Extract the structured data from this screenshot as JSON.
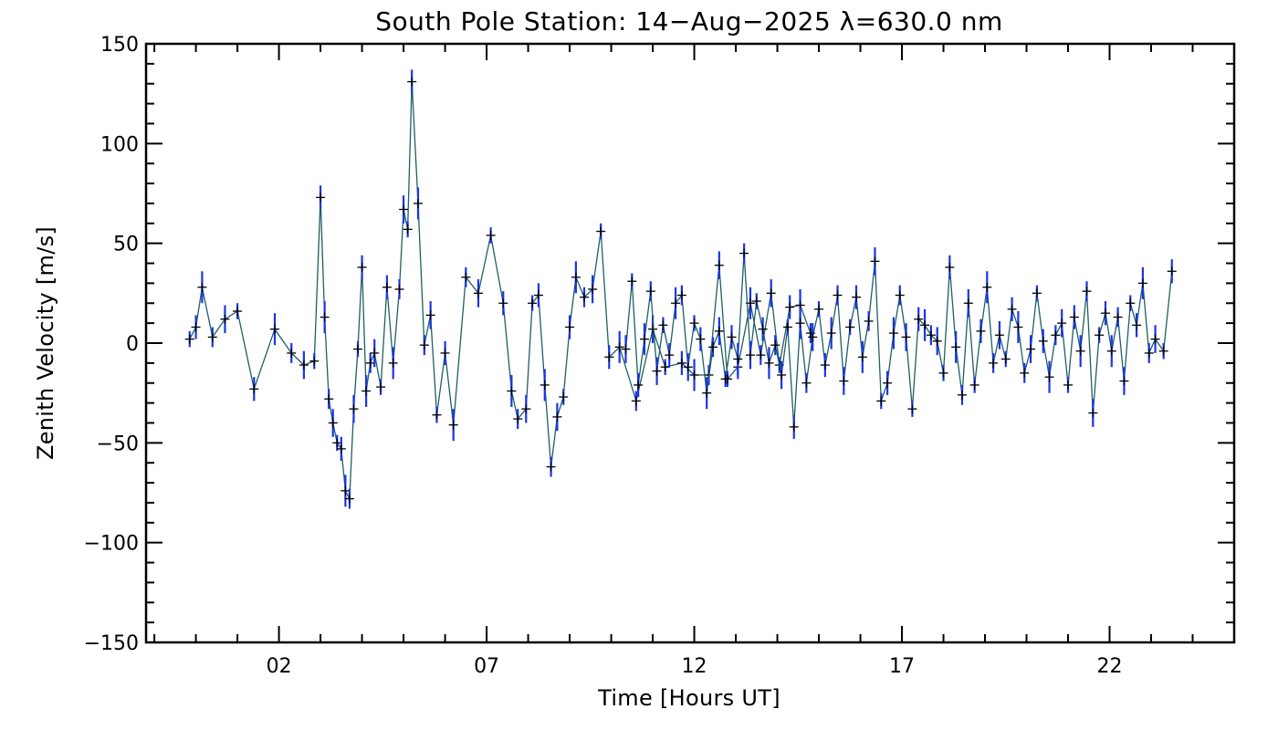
{
  "chart_data": {
    "type": "scatter",
    "title": "South Pole Station: 14−Aug−2025 λ=630.0 nm",
    "xlabel": "Time [Hours UT]",
    "ylabel": "Zenith Velocity [m/s]",
    "xlim": [
      -1.2,
      25
    ],
    "ylim": [
      -150,
      150
    ],
    "x_ticks": [
      2,
      7,
      12,
      17,
      22
    ],
    "x_tick_labels": [
      "02",
      "07",
      "12",
      "17",
      "22"
    ],
    "y_ticks": [
      150,
      100,
      50,
      0,
      -50,
      -100,
      -150
    ],
    "y_tick_labels": [
      "150",
      "100",
      "50",
      "0",
      "−50",
      "−100",
      "−150"
    ],
    "grid": false,
    "legend": "none",
    "colors": {
      "line": "#1f5f63",
      "error_bar": "#1a35e8",
      "marker": "#000000"
    },
    "series": [
      {
        "x": [
          -0.15,
          0.0,
          0.15,
          0.4,
          0.7,
          1.0,
          1.4,
          1.9,
          2.3,
          2.6,
          2.85,
          3.0,
          3.1,
          3.2,
          3.3,
          3.4,
          3.5,
          3.6,
          3.7,
          3.8,
          3.9,
          4.0,
          4.1,
          4.2,
          4.3,
          4.45,
          4.6,
          4.75,
          4.9,
          5.0,
          5.1,
          5.2,
          5.35,
          5.5,
          5.65,
          5.8,
          6.0,
          6.2,
          6.5,
          6.8,
          7.1,
          7.4,
          7.6,
          7.75,
          7.95,
          8.1,
          8.25,
          8.4,
          8.55,
          8.7,
          8.85,
          9.0,
          9.15,
          9.35,
          9.55,
          9.75,
          9.95,
          10.2,
          10.6,
          11.0,
          11.3,
          11.7,
          12.0,
          12.35,
          12.6,
          12.8,
          13.05,
          13.35,
          13.6,
          13.85,
          14.05,
          14.3,
          14.55,
          14.8
        ],
        "y": [
          2,
          8,
          28,
          3,
          12,
          16,
          -23,
          7,
          -5,
          -11,
          -9,
          73,
          13,
          -28,
          -40,
          -50,
          -53,
          -74,
          -78,
          -33,
          -3,
          38,
          -24,
          -10,
          -5,
          -22,
          28,
          -10,
          27,
          67,
          57,
          131,
          70,
          -1,
          14,
          -36,
          -5,
          -41,
          33,
          25,
          54,
          20,
          -24,
          -38,
          -33,
          20,
          24,
          -21,
          -62,
          -37,
          -27,
          8,
          33,
          23,
          27,
          56,
          -7,
          -2,
          -29,
          7,
          -12,
          -10,
          -16,
          -16,
          39,
          -18,
          -12,
          20,
          -6,
          25,
          -11,
          18,
          19,
          5
        ]
      },
      {
        "x": [
          10.35,
          10.5,
          10.65,
          10.8,
          10.95,
          11.1,
          11.25,
          11.4,
          11.55,
          11.7,
          11.85,
          12.0,
          12.15,
          12.3,
          12.45,
          12.6,
          12.75,
          12.9,
          13.05,
          13.2,
          13.35,
          13.5,
          13.65,
          13.8,
          13.95,
          14.1,
          14.25,
          14.4,
          14.55,
          14.7,
          14.85,
          15.0,
          15.15,
          15.3,
          15.45,
          15.6,
          15.75,
          15.9,
          16.05,
          16.2,
          16.35,
          16.5,
          16.65,
          16.8,
          16.95,
          17.1,
          17.25,
          17.4,
          17.55,
          17.7,
          17.85,
          18.0,
          18.15,
          18.3,
          18.45,
          18.6,
          18.75,
          18.9,
          19.05,
          19.2,
          19.35,
          19.5,
          19.65,
          19.8,
          19.95,
          20.1,
          20.25,
          20.4,
          20.55,
          20.7,
          20.85,
          21.0,
          21.15,
          21.3,
          21.45,
          21.6,
          21.75,
          21.9,
          22.05,
          22.2,
          22.35,
          22.5,
          22.65,
          22.8,
          22.95,
          23.1,
          23.3,
          23.5
        ],
        "y": [
          -3,
          31,
          -21,
          2,
          26,
          -14,
          9,
          -6,
          20,
          24,
          -12,
          10,
          2,
          -25,
          -2,
          6,
          -18,
          3,
          -8,
          45,
          -6,
          21,
          7,
          -10,
          -1,
          -16,
          8,
          -42,
          10,
          -20,
          3,
          17,
          -11,
          5,
          24,
          -19,
          8,
          23,
          -7,
          11,
          41,
          -29,
          -20,
          5,
          24,
          3,
          -33,
          12,
          9,
          4,
          1,
          -15,
          38,
          -2,
          -26,
          20,
          -21,
          6,
          28,
          -10,
          4,
          -8,
          17,
          8,
          -15,
          -3,
          25,
          1,
          -17,
          4,
          10,
          -21,
          13,
          -4,
          26,
          -35,
          4,
          15,
          -4,
          13,
          -19,
          20,
          9,
          30,
          -5,
          2,
          -4,
          36
        ]
      }
    ]
  }
}
